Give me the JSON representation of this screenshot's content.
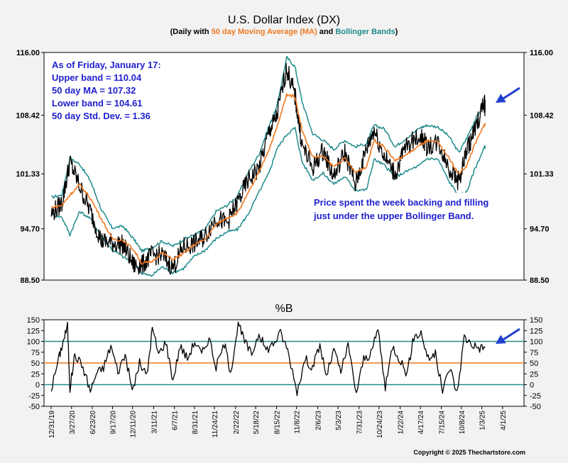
{
  "title": "U.S. Dollar Index (DX)",
  "subtitle": {
    "prefix": "(Daily with ",
    "ma_text": "50 day Moving Average (MA)",
    "mid": " and ",
    "bb_text": "Bollinger Bands",
    "suffix": ")"
  },
  "colors": {
    "price": "#000000",
    "ma": "#f07820",
    "bands": "#1f8a8a",
    "annotation": "#1f1fcf",
    "arrow": "#1f3fcf",
    "background": "#f2f2f2",
    "plot_bg": "#ffffff"
  },
  "info_box": [
    "As of Friday, January 17:",
    "Upper band = 110.04",
    "50 day MA = 107.32",
    "Lower band = 104.61",
    "50 day Std. Dev. = 1.36"
  ],
  "annotation": [
    "Price spent the week backing and filling",
    "just under the upper Bollinger Band."
  ],
  "percent_b_title": "%B",
  "copyright": "Copyright © 2025 Thechartstore.com",
  "chart_data": [
    {
      "type": "line",
      "title": "U.S. Dollar Index (DX)",
      "ylim": [
        88.5,
        116.0
      ],
      "yticks": [
        "116.00",
        "108.42",
        "101.33",
        "94.70",
        "88.50"
      ],
      "ytick_values": [
        116.0,
        108.42,
        101.33,
        94.7,
        88.5
      ],
      "grid": false,
      "x_dates": [
        "2020-01-01",
        "2020-02-15",
        "2020-03-20",
        "2020-05-01",
        "2020-06-15",
        "2020-08-01",
        "2020-09-15",
        "2020-11-01",
        "2020-12-15",
        "2021-01-20",
        "2021-03-01",
        "2021-04-15",
        "2021-06-01",
        "2021-07-15",
        "2021-09-01",
        "2021-10-15",
        "2021-12-01",
        "2022-01-15",
        "2022-03-01",
        "2022-04-15",
        "2022-06-01",
        "2022-07-15",
        "2022-08-15",
        "2022-09-27",
        "2022-11-01",
        "2022-12-01",
        "2023-01-15",
        "2023-03-01",
        "2023-04-15",
        "2023-06-01",
        "2023-07-15",
        "2023-09-01",
        "2023-10-03",
        "2023-11-15",
        "2024-01-01",
        "2024-02-15",
        "2024-04-16",
        "2024-05-15",
        "2024-07-01",
        "2024-08-15",
        "2024-09-27",
        "2024-11-01",
        "2024-12-01",
        "2025-01-13",
        "2025-01-17"
      ],
      "series": [
        {
          "name": "Price",
          "values": [
            96.5,
            97.8,
            102.8,
            99.8,
            96.8,
            93.2,
            93.0,
            92.8,
            90.3,
            90.3,
            91.5,
            91.5,
            90.0,
            92.5,
            92.9,
            93.8,
            96.1,
            95.3,
            97.8,
            100.5,
            102.0,
            106.5,
            108.2,
            114.1,
            110.8,
            104.8,
            102.0,
            104.2,
            101.0,
            104.0,
            100.0,
            104.3,
            106.7,
            103.5,
            101.3,
            104.6,
            106.0,
            104.6,
            105.2,
            102.2,
            100.4,
            104.3,
            106.3,
            110.0,
            109.3
          ]
        },
        {
          "name": "50 day MA",
          "values": [
            97.3,
            97.5,
            98.8,
            100.0,
            98.4,
            95.9,
            93.5,
            93.3,
            92.2,
            90.5,
            90.7,
            91.8,
            91.0,
            91.7,
            92.8,
            93.4,
            95.2,
            96.0,
            96.6,
            98.9,
            101.5,
            104.4,
            106.8,
            110.9,
            110.7,
            106.6,
            103.4,
            103.4,
            102.2,
            103.2,
            101.5,
            102.2,
            105.4,
            104.6,
            102.9,
            103.6,
            104.8,
            105.3,
            105.1,
            103.3,
            101.3,
            102.4,
            104.7,
            107.2,
            107.3
          ]
        },
        {
          "name": "Upper Bollinger Band",
          "values": [
            98.5,
            98.8,
            103.2,
            102.5,
            100.5,
            97.0,
            94.8,
            95.0,
            93.5,
            92.0,
            92.4,
            93.2,
            92.6,
            93.4,
            94.0,
            94.6,
            96.8,
            97.5,
            98.6,
            101.4,
            103.7,
            107.2,
            109.3,
            115.4,
            114.3,
            110.1,
            106.2,
            105.4,
            104.3,
            105.4,
            104.6,
            105.0,
            107.2,
            106.8,
            104.6,
            105.6,
            106.9,
            107.2,
            107.0,
            105.9,
            103.9,
            105.7,
            107.6,
            109.9,
            110.0
          ]
        },
        {
          "name": "Lower Bollinger Band",
          "values": [
            96.4,
            96.1,
            94.0,
            96.8,
            95.9,
            93.8,
            92.2,
            91.3,
            90.6,
            89.3,
            89.0,
            90.1,
            89.4,
            89.9,
            91.4,
            92.1,
            93.5,
            94.3,
            94.6,
            96.4,
            99.1,
            101.5,
            104.3,
            106.1,
            106.9,
            102.8,
            100.6,
            101.4,
            100.1,
            101.0,
            99.4,
            99.4,
            103.1,
            102.4,
            100.9,
            101.6,
            102.4,
            103.2,
            103.1,
            100.5,
            98.7,
            99.2,
            101.7,
            104.5,
            104.6
          ]
        }
      ]
    },
    {
      "type": "line",
      "title": "%B",
      "ylim": [
        -50,
        150
      ],
      "yticks": [
        "150",
        "125",
        "100",
        "75",
        "50",
        "25",
        "0",
        "-25",
        "-50"
      ],
      "ytick_values": [
        150,
        125,
        100,
        75,
        50,
        25,
        0,
        -25,
        -50
      ],
      "reference_lines": [
        100,
        50,
        0
      ],
      "x_dates": [
        "2020-01-01",
        "2020-02-01",
        "2020-02-20",
        "2020-03-10",
        "2020-03-20",
        "2020-04-10",
        "2020-05-15",
        "2020-06-15",
        "2020-07-10",
        "2020-08-10",
        "2020-09-10",
        "2020-10-10",
        "2020-11-10",
        "2020-12-10",
        "2021-01-10",
        "2021-02-10",
        "2021-03-05",
        "2021-04-01",
        "2021-05-01",
        "2021-06-01",
        "2021-07-01",
        "2021-08-01",
        "2021-09-01",
        "2021-10-01",
        "2021-11-01",
        "2021-12-01",
        "2022-01-05",
        "2022-02-01",
        "2022-03-05",
        "2022-04-01",
        "2022-05-01",
        "2022-06-01",
        "2022-07-01",
        "2022-08-01",
        "2022-09-01",
        "2022-10-01",
        "2022-11-10",
        "2022-12-15",
        "2023-01-15",
        "2023-02-15",
        "2023-03-15",
        "2023-04-15",
        "2023-05-15",
        "2023-06-15",
        "2023-07-20",
        "2023-08-20",
        "2023-09-20",
        "2023-10-20",
        "2023-11-20",
        "2023-12-20",
        "2024-01-20",
        "2024-02-20",
        "2024-03-20",
        "2024-04-20",
        "2024-05-20",
        "2024-06-20",
        "2024-07-20",
        "2024-08-20",
        "2024-09-20",
        "2024-10-20",
        "2024-11-20",
        "2024-12-20",
        "2025-01-17"
      ],
      "series": [
        {
          "name": "%B",
          "values": [
            -10,
            60,
            100,
            135,
            -10,
            70,
            40,
            -15,
            25,
            40,
            90,
            30,
            70,
            -15,
            50,
            20,
            130,
            70,
            100,
            10,
            90,
            60,
            100,
            70,
            110,
            40,
            95,
            30,
            140,
            100,
            70,
            120,
            80,
            95,
            120,
            80,
            -15,
            60,
            40,
            90,
            20,
            80,
            30,
            90,
            -20,
            60,
            70,
            130,
            -10,
            90,
            60,
            25,
            110,
            120,
            60,
            70,
            -15,
            40,
            -20,
            110,
            95,
            85,
            85
          ]
        }
      ]
    }
  ],
  "x_axis": {
    "tick_dates": [
      "2019-12-31",
      "2020-03-27",
      "2020-06-23",
      "2020-09-17",
      "2020-12-11",
      "2021-03-11",
      "2021-06-07",
      "2021-08-31",
      "2021-11-24",
      "2022-02-22",
      "2022-05-18",
      "2022-08-15",
      "2022-11-08",
      "2023-02-06",
      "2023-05-03",
      "2023-07-31",
      "2023-10-24",
      "2024-01-22",
      "2024-04-17",
      "2024-07-15",
      "2024-10-08",
      "2025-01-03",
      "2025-04-01"
    ],
    "tick_labels": [
      "12/31/19",
      "3/27/20",
      "6/23/20",
      "9/17/20",
      "12/11/20",
      "3/11/21",
      "6/7/21",
      "8/31/21",
      "11/24/21",
      "2/22/22",
      "5/18/22",
      "8/15/22",
      "11/8/22",
      "2/6/23",
      "5/3/23",
      "7/31/23",
      "10/24/23",
      "1/22/24",
      "4/17/24",
      "7/15/24",
      "10/8/24",
      "1/3/25",
      "4/1/25"
    ]
  }
}
